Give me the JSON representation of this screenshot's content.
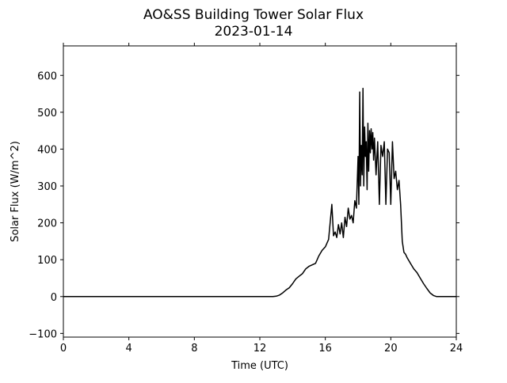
{
  "chart_data": {
    "type": "line",
    "title": "AO&SS Building Tower Solar Flux",
    "subtitle": "2023-01-14",
    "xlabel": "Time (UTC)",
    "ylabel": "Solar Flux (W/m^2)",
    "xlim": [
      0,
      24
    ],
    "ylim": [
      -110,
      680
    ],
    "x_ticks": [
      0,
      4,
      8,
      12,
      16,
      20,
      24
    ],
    "x_tick_labels": [
      "0",
      "4",
      "8",
      "12",
      "16",
      "20",
      "24"
    ],
    "y_ticks": [
      -100,
      0,
      100,
      200,
      300,
      400,
      500,
      600
    ],
    "y_tick_labels": [
      "−100",
      "0",
      "100",
      "200",
      "300",
      "400",
      "500",
      "600"
    ],
    "grid": false,
    "series": [
      {
        "color": "#000000",
        "x": [
          0,
          12.8,
          13.0,
          13.2,
          13.4,
          13.6,
          13.8,
          14.0,
          14.2,
          14.4,
          14.6,
          14.8,
          15.0,
          15.2,
          15.4,
          15.6,
          15.8,
          16.0,
          16.2,
          16.4,
          16.5,
          16.6,
          16.7,
          16.8,
          16.9,
          17.0,
          17.1,
          17.2,
          17.3,
          17.4,
          17.5,
          17.6,
          17.7,
          17.8,
          17.9,
          18.0,
          18.05,
          18.1,
          18.15,
          18.2,
          18.25,
          18.3,
          18.35,
          18.4,
          18.45,
          18.5,
          18.55,
          18.6,
          18.65,
          18.7,
          18.75,
          18.8,
          18.85,
          18.9,
          18.95,
          19.0,
          19.1,
          19.2,
          19.3,
          19.4,
          19.5,
          19.6,
          19.7,
          19.8,
          19.9,
          20.0,
          20.1,
          20.2,
          20.3,
          20.4,
          20.5,
          20.6,
          20.7,
          20.8,
          20.9,
          21.0,
          21.2,
          21.4,
          21.6,
          21.8,
          22.0,
          22.2,
          22.4,
          22.6,
          22.8,
          23.0,
          24.0
        ],
        "y": [
          0,
          0,
          1,
          4,
          10,
          18,
          24,
          35,
          48,
          55,
          62,
          75,
          82,
          86,
          90,
          110,
          125,
          135,
          155,
          250,
          165,
          175,
          160,
          195,
          170,
          200,
          160,
          215,
          190,
          240,
          210,
          220,
          200,
          260,
          240,
          380,
          250,
          555,
          300,
          410,
          330,
          565,
          300,
          460,
          380,
          420,
          290,
          470,
          340,
          450,
          390,
          455,
          400,
          445,
          370,
          430,
          330,
          420,
          250,
          410,
          380,
          420,
          250,
          400,
          390,
          250,
          420,
          320,
          340,
          290,
          315,
          250,
          150,
          120,
          115,
          105,
          90,
          75,
          65,
          50,
          35,
          22,
          10,
          3,
          0,
          0,
          0
        ]
      }
    ]
  }
}
